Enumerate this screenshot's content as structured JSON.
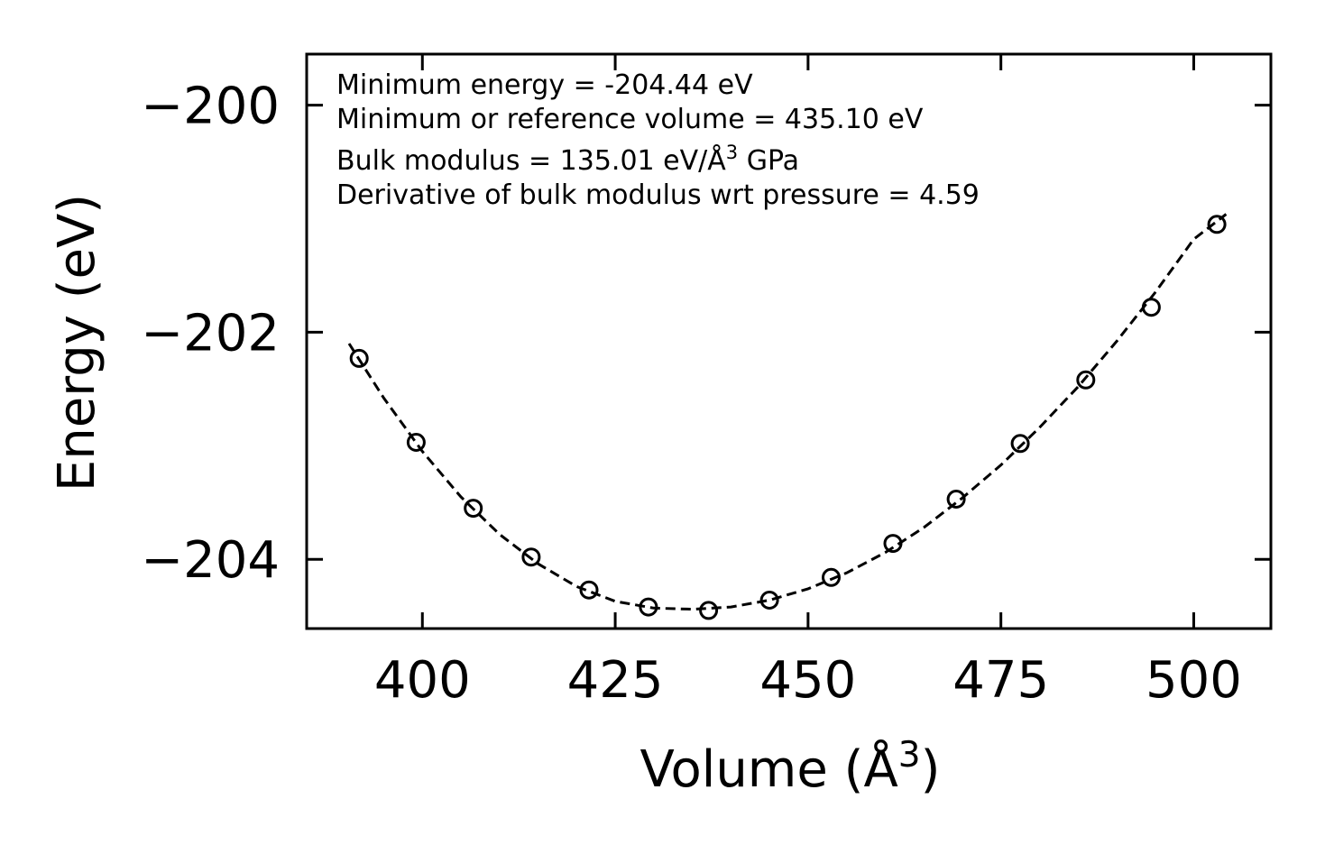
{
  "chart_data": {
    "type": "scatter",
    "title": "",
    "xlabel": "Volume (Å",
    "xlabel_sup": "3",
    "xlabel_tail": ")",
    "ylabel": "Energy (eV)",
    "xlim": [
      385,
      510
    ],
    "ylim": [
      -204.61,
      -199.55
    ],
    "xticks": [
      400,
      425,
      450,
      475,
      500
    ],
    "xtick_labels": [
      "400",
      "425",
      "450",
      "475",
      "500"
    ],
    "yticks": [
      -200,
      -202,
      -204
    ],
    "ytick_labels": [
      "−200",
      "−202",
      "−204"
    ],
    "grid": false,
    "series": [
      {
        "name": "data",
        "marker": "open-circle",
        "x": [
          391.8,
          399.2,
          406.6,
          414.1,
          421.6,
          429.3,
          437.1,
          445.0,
          453.0,
          461.0,
          469.2,
          477.5,
          486.0,
          494.5,
          503.0
        ],
        "y": [
          -202.23,
          -202.97,
          -203.55,
          -203.98,
          -204.27,
          -204.42,
          -204.45,
          -204.36,
          -204.16,
          -203.86,
          -203.47,
          -202.98,
          -202.42,
          -201.78,
          -201.05
        ]
      },
      {
        "name": "fit",
        "style": "dashed-line",
        "x": [
          390.5,
          395,
          400,
          405,
          410,
          415,
          420,
          425,
          430,
          435.1,
          440,
          445,
          450,
          455,
          460,
          465,
          470,
          475,
          480,
          485,
          490,
          495,
          500,
          504.2
        ],
        "y": [
          -202.1,
          -202.58,
          -203.05,
          -203.45,
          -203.78,
          -204.04,
          -204.24,
          -204.37,
          -204.43,
          -204.44,
          -204.42,
          -204.36,
          -204.26,
          -204.12,
          -203.94,
          -203.72,
          -203.46,
          -203.17,
          -202.84,
          -202.48,
          -202.08,
          -201.65,
          -201.18,
          -200.96
        ]
      }
    ],
    "annotations": [
      {
        "text": "Minimum energy = -204.44 eV",
        "sup": "",
        "tail": ""
      },
      {
        "text": "Minimum or reference volume = 435.10 eV",
        "sup": "",
        "tail": ""
      },
      {
        "text": "Bulk modulus = 135.01 eV/Å",
        "sup": "3",
        "tail": " GPa"
      },
      {
        "text": "Derivative of bulk modulus wrt pressure = 4.59",
        "sup": "",
        "tail": ""
      }
    ],
    "colors": {
      "line": "#000000",
      "marker_edge": "#000000",
      "background": "#ffffff"
    }
  }
}
